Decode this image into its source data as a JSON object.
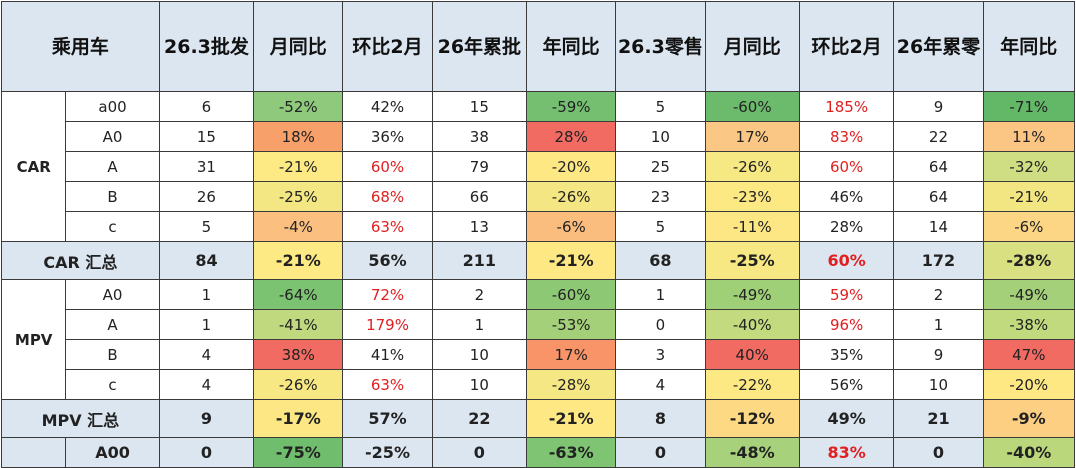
{
  "colors": {
    "header_bg": "#dce6f1",
    "summary_bg": "#dce6f1",
    "red_text": "#e02020",
    "grid": "#3a3a3a"
  },
  "headers": [
    "乘用车",
    "26.3批发",
    "月同比",
    "环比2月",
    "26年累批",
    "年同比",
    "26.3零售",
    "月同比",
    "环比2月",
    "26年累零",
    "年同比"
  ],
  "groups": [
    {
      "name": "CAR",
      "rows": [
        {
          "seg": "a00",
          "cells": [
            "6",
            "-52%",
            "42%",
            "15",
            "-59%",
            "5",
            "-60%",
            "185%",
            "9",
            "-71%"
          ],
          "bg": [
            "#fff",
            "#8fc97c",
            "#fff",
            "#fff",
            "#74bf70",
            "#fff",
            "#6cbb6c",
            "#fff",
            "#fff",
            "#63b867"
          ],
          "red": [
            false,
            false,
            false,
            false,
            false,
            false,
            false,
            true,
            false,
            false
          ]
        },
        {
          "seg": "A0",
          "cells": [
            "15",
            "18%",
            "36%",
            "38",
            "28%",
            "10",
            "17%",
            "83%",
            "22",
            "11%"
          ],
          "bg": [
            "#fff",
            "#f8a06a",
            "#fff",
            "#fff",
            "#f26b63",
            "#fff",
            "#fac884",
            "#fff",
            "#fff",
            "#fbc584"
          ],
          "red": [
            false,
            false,
            false,
            false,
            false,
            false,
            false,
            true,
            false,
            false
          ]
        },
        {
          "seg": "A",
          "cells": [
            "31",
            "-21%",
            "60%",
            "79",
            "-20%",
            "25",
            "-26%",
            "60%",
            "64",
            "-32%"
          ],
          "bg": [
            "#fff",
            "#fdea84",
            "#fff",
            "#fff",
            "#fde884",
            "#fff",
            "#f6e883",
            "#fff",
            "#fff",
            "#cfde82"
          ],
          "red": [
            false,
            false,
            true,
            false,
            false,
            false,
            false,
            true,
            false,
            false
          ]
        },
        {
          "seg": "B",
          "cells": [
            "26",
            "-25%",
            "68%",
            "66",
            "-26%",
            "23",
            "-23%",
            "46%",
            "64",
            "-21%"
          ],
          "bg": [
            "#fff",
            "#f2e783",
            "#fff",
            "#fff",
            "#f4e783",
            "#fff",
            "#fde984",
            "#fff",
            "#fff",
            "#f2e683"
          ],
          "red": [
            false,
            false,
            true,
            false,
            false,
            false,
            false,
            false,
            false,
            false
          ]
        },
        {
          "seg": "c",
          "cells": [
            "5",
            "-4%",
            "63%",
            "13",
            "-6%",
            "5",
            "-11%",
            "28%",
            "14",
            "-6%"
          ],
          "bg": [
            "#fff",
            "#fbc07f",
            "#fff",
            "#fff",
            "#fbbd7e",
            "#fff",
            "#fde684",
            "#fff",
            "#fff",
            "#fcd684"
          ],
          "red": [
            false,
            false,
            true,
            false,
            false,
            false,
            false,
            false,
            false,
            false
          ]
        }
      ],
      "summary": {
        "label": "CAR 汇总",
        "cells": [
          "84",
          "-21%",
          "56%",
          "211",
          "-21%",
          "68",
          "-25%",
          "60%",
          "172",
          "-28%"
        ],
        "red": [
          false,
          false,
          false,
          false,
          false,
          false,
          false,
          true,
          false,
          false
        ]
      }
    },
    {
      "name": "MPV",
      "rows": [
        {
          "seg": "A0",
          "cells": [
            "1",
            "-64%",
            "72%",
            "2",
            "-60%",
            "1",
            "-49%",
            "59%",
            "2",
            "-49%"
          ],
          "bg": [
            "#fff",
            "#7bc371",
            "#fff",
            "#fff",
            "#8dc974",
            "#fff",
            "#9fcf77",
            "#fff",
            "#fff",
            "#a4d07a"
          ],
          "red": [
            false,
            false,
            true,
            false,
            false,
            false,
            false,
            true,
            false,
            false
          ]
        },
        {
          "seg": "A",
          "cells": [
            "1",
            "-41%",
            "179%",
            "1",
            "-53%",
            "0",
            "-40%",
            "96%",
            "1",
            "-38%"
          ],
          "bg": [
            "#fff",
            "#c0d97e",
            "#fff",
            "#fff",
            "#a5d07a",
            "#fff",
            "#c3da7e",
            "#fff",
            "#fff",
            "#c1da7e"
          ],
          "red": [
            false,
            false,
            true,
            false,
            false,
            false,
            false,
            true,
            false,
            false
          ]
        },
        {
          "seg": "B",
          "cells": [
            "4",
            "38%",
            "41%",
            "10",
            "17%",
            "3",
            "40%",
            "35%",
            "9",
            "47%"
          ],
          "bg": [
            "#fff",
            "#f26b63",
            "#fff",
            "#fff",
            "#f89468",
            "#fff",
            "#f26b63",
            "#fff",
            "#fff",
            "#f26b63"
          ],
          "red": [
            false,
            false,
            false,
            false,
            false,
            false,
            false,
            false,
            false,
            false
          ]
        },
        {
          "seg": "c",
          "cells": [
            "4",
            "-26%",
            "63%",
            "10",
            "-28%",
            "4",
            "-22%",
            "56%",
            "10",
            "-20%"
          ],
          "bg": [
            "#fff",
            "#f7e883",
            "#fff",
            "#fff",
            "#f5e783",
            "#fff",
            "#fde984",
            "#fff",
            "#fff",
            "#fde884"
          ],
          "red": [
            false,
            false,
            true,
            false,
            false,
            false,
            false,
            false,
            false,
            false
          ]
        }
      ],
      "summary": {
        "label": "MPV 汇总",
        "cells": [
          "9",
          "-17%",
          "57%",
          "22",
          "-21%",
          "8",
          "-12%",
          "49%",
          "21",
          "-9%"
        ],
        "red": [
          false,
          false,
          false,
          false,
          false,
          false,
          false,
          false,
          false,
          false
        ]
      }
    }
  ],
  "last_row": {
    "seg": "A00",
    "cells": [
      "0",
      "-75%",
      "-25%",
      "0",
      "-63%",
      "0",
      "-48%",
      "83%",
      "0",
      "-40%"
    ],
    "bg": [
      "#dce6f1",
      "#6fbd6d",
      "#dce6f1",
      "#dce6f1",
      "#7ec472",
      "#dce6f1",
      "#a7d17a",
      "#dce6f1",
      "#dce6f1",
      "#bad77c"
    ],
    "red": [
      false,
      false,
      false,
      false,
      false,
      false,
      false,
      true,
      false,
      false
    ]
  }
}
